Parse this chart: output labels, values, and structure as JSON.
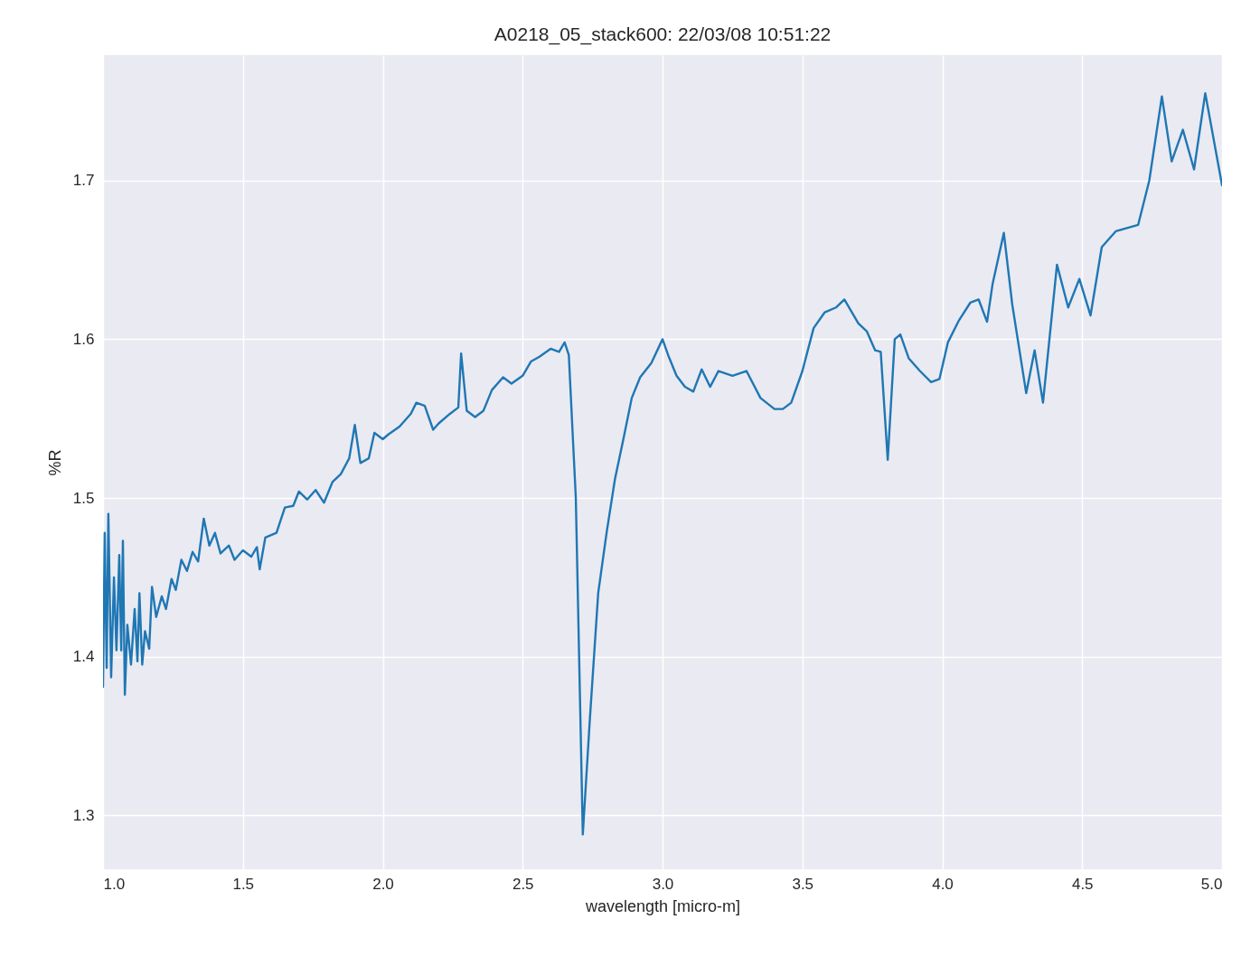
{
  "chart_data": {
    "type": "line",
    "title": "A0218_05_stack600:  22/03/08 10:51:22",
    "xlabel": "wavelength [micro-m]",
    "ylabel": "%R",
    "xlim": [
      1,
      5
    ],
    "ylim": [
      1.266,
      1.779
    ],
    "xticks": [
      {
        "value": 1,
        "label": "1.0"
      },
      {
        "value": 1.5,
        "label": "1.5"
      },
      {
        "value": 2,
        "label": "2.0"
      },
      {
        "value": 2.5,
        "label": "2.5"
      },
      {
        "value": 3,
        "label": "3.0"
      },
      {
        "value": 3.5,
        "label": "3.5"
      },
      {
        "value": 4,
        "label": "4.0"
      },
      {
        "value": 4.5,
        "label": "4.5"
      },
      {
        "value": 5,
        "label": "5.0"
      }
    ],
    "yticks": [
      1.3,
      1.4,
      1.5,
      1.6,
      1.7
    ],
    "grid": true,
    "x": [
      1.0,
      1.006,
      1.013,
      1.019,
      1.029,
      1.039,
      1.048,
      1.058,
      1.065,
      1.071,
      1.078,
      1.087,
      1.1,
      1.113,
      1.123,
      1.13,
      1.14,
      1.15,
      1.165,
      1.175,
      1.19,
      1.21,
      1.225,
      1.245,
      1.26,
      1.28,
      1.3,
      1.32,
      1.34,
      1.36,
      1.38,
      1.4,
      1.42,
      1.45,
      1.47,
      1.5,
      1.53,
      1.55,
      1.56,
      1.58,
      1.62,
      1.65,
      1.68,
      1.7,
      1.73,
      1.76,
      1.79,
      1.82,
      1.85,
      1.88,
      1.9,
      1.92,
      1.95,
      1.97,
      2.0,
      2.02,
      2.06,
      2.1,
      2.12,
      2.15,
      2.18,
      2.2,
      2.24,
      2.27,
      2.28,
      2.3,
      2.33,
      2.36,
      2.39,
      2.43,
      2.46,
      2.5,
      2.53,
      2.56,
      2.6,
      2.63,
      2.65,
      2.665,
      2.69,
      2.715,
      2.74,
      2.77,
      2.8,
      2.83,
      2.86,
      2.89,
      2.92,
      2.96,
      3.0,
      3.02,
      3.05,
      3.08,
      3.11,
      3.14,
      3.17,
      3.2,
      3.25,
      3.3,
      3.35,
      3.4,
      3.43,
      3.46,
      3.5,
      3.54,
      3.58,
      3.62,
      3.65,
      3.7,
      3.73,
      3.76,
      3.78,
      3.805,
      3.83,
      3.85,
      3.88,
      3.92,
      3.96,
      3.99,
      4.02,
      4.06,
      4.1,
      4.13,
      4.16,
      4.18,
      4.22,
      4.25,
      4.3,
      4.33,
      4.36,
      4.41,
      4.45,
      4.49,
      4.53,
      4.57,
      4.62,
      4.66,
      4.7,
      4.74,
      4.785,
      4.82,
      4.86,
      4.9,
      4.94,
      5.0
    ],
    "series": [
      {
        "color": "#1f77b4",
        "values": [
          1.381,
          1.478,
          1.393,
          1.49,
          1.387,
          1.45,
          1.404,
          1.464,
          1.404,
          1.473,
          1.376,
          1.42,
          1.395,
          1.43,
          1.397,
          1.44,
          1.395,
          1.416,
          1.405,
          1.444,
          1.425,
          1.438,
          1.43,
          1.449,
          1.442,
          1.461,
          1.454,
          1.466,
          1.46,
          1.487,
          1.47,
          1.478,
          1.465,
          1.47,
          1.461,
          1.467,
          1.463,
          1.469,
          1.455,
          1.475,
          1.478,
          1.494,
          1.495,
          1.504,
          1.499,
          1.505,
          1.497,
          1.51,
          1.515,
          1.525,
          1.546,
          1.522,
          1.525,
          1.541,
          1.537,
          1.54,
          1.545,
          1.553,
          1.56,
          1.558,
          1.543,
          1.547,
          1.553,
          1.557,
          1.591,
          1.555,
          1.551,
          1.555,
          1.568,
          1.576,
          1.572,
          1.577,
          1.586,
          1.589,
          1.594,
          1.592,
          1.598,
          1.59,
          1.5,
          1.288,
          1.36,
          1.44,
          1.478,
          1.512,
          1.537,
          1.563,
          1.576,
          1.585,
          1.6,
          1.59,
          1.577,
          1.57,
          1.567,
          1.581,
          1.57,
          1.58,
          1.577,
          1.58,
          1.563,
          1.556,
          1.556,
          1.56,
          1.58,
          1.607,
          1.617,
          1.62,
          1.625,
          1.61,
          1.605,
          1.593,
          1.592,
          1.524,
          1.6,
          1.603,
          1.588,
          1.58,
          1.573,
          1.575,
          1.598,
          1.612,
          1.623,
          1.625,
          1.611,
          1.635,
          1.667,
          1.622,
          1.566,
          1.593,
          1.56,
          1.647,
          1.62,
          1.638,
          1.615,
          1.658,
          1.668,
          1.67,
          1.672,
          1.7,
          1.753,
          1.712,
          1.732,
          1.707,
          1.755,
          1.697
        ]
      }
    ]
  }
}
